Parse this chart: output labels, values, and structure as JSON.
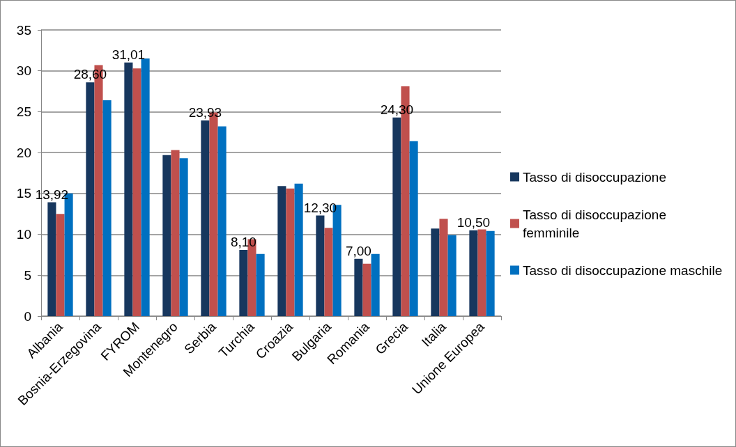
{
  "chart_data": {
    "type": "bar",
    "categories": [
      "Albania",
      "Bosnia-Erzegovina",
      "FYROM",
      "Montenegro",
      "Serbia",
      "Turchia",
      "Croazia",
      "Bulgaria",
      "Romania",
      "Grecia",
      "Italia",
      "Unione Europea"
    ],
    "series": [
      {
        "name": "Tasso di disoccupazione",
        "color": "#17375e",
        "values": [
          13.92,
          28.6,
          31.01,
          19.7,
          23.93,
          8.1,
          15.9,
          12.3,
          7.0,
          24.3,
          10.7,
          10.5
        ],
        "value_labels": [
          "13,92",
          "28,60",
          "31,01",
          null,
          "23,93",
          "8,10",
          null,
          "12,30",
          "7,00",
          "24,30",
          null,
          "10,50"
        ]
      },
      {
        "name": "Tasso di disoccupazione femminile",
        "color": "#c0504d",
        "values": [
          12.5,
          30.7,
          30.3,
          20.3,
          24.9,
          9.4,
          15.6,
          10.8,
          6.4,
          28.1,
          11.9,
          10.6
        ]
      },
      {
        "name": "Tasso di disoccupazione maschile",
        "color": "#0070c0",
        "values": [
          15.0,
          26.4,
          31.5,
          19.3,
          23.2,
          7.6,
          16.2,
          13.6,
          7.6,
          21.4,
          9.9,
          10.4
        ]
      }
    ],
    "ylim": [
      0,
      35
    ],
    "yticks": [
      0,
      5,
      10,
      15,
      20,
      25,
      30,
      35
    ],
    "grid": "y",
    "legend": "right"
  }
}
